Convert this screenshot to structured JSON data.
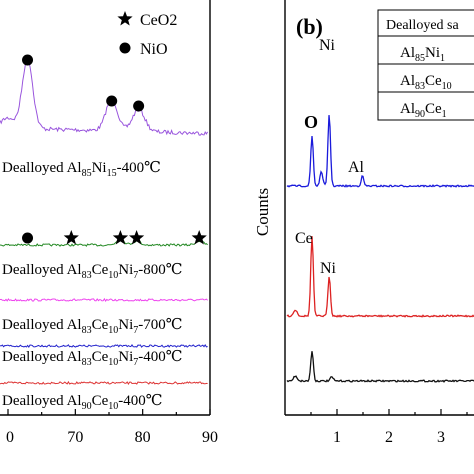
{
  "chart_data": [
    {
      "panel": "a",
      "type": "line",
      "xlim": [
        60,
        90
      ],
      "xticks": [
        "0",
        "70",
        "80",
        "90"
      ],
      "legend": [
        {
          "label": "CeO2",
          "marker": "star"
        },
        {
          "label": "NiO",
          "marker": "circle"
        }
      ],
      "series": [
        {
          "name": "Dealloyed Al85Ni15-400℃",
          "label_base": "Dealloyed Al",
          "label_parts": [
            "85",
            "Ni",
            "15",
            "-400℃"
          ],
          "color": "#9955dd",
          "peaks": [
            {
              "x": 62.9,
              "kind": "NiO"
            },
            {
              "x": 75.4,
              "kind": "NiO"
            },
            {
              "x": 79.4,
              "kind": "NiO"
            }
          ]
        },
        {
          "name": "Dealloyed Al83Ce10Ni7-800℃",
          "label_base": "Dealloyed Al",
          "label_parts": [
            "83",
            "Ce",
            "10",
            "Ni",
            "7",
            "-800℃"
          ],
          "color": "#228822",
          "peaks": [
            {
              "x": 62.9,
              "kind": "NiO"
            },
            {
              "x": 69.4,
              "kind": "CeO2"
            },
            {
              "x": 76.7,
              "kind": "CeO2"
            },
            {
              "x": 79.1,
              "kind": "CeO2"
            },
            {
              "x": 88.4,
              "kind": "CeO2"
            }
          ]
        },
        {
          "name": "Dealloyed Al83Ce10Ni7-700℃",
          "label_base": "Dealloyed Al",
          "label_parts": [
            "83",
            "Ce",
            "10",
            "Ni",
            "7",
            "-700℃"
          ],
          "color": "#ee44ee",
          "peaks": []
        },
        {
          "name": "Dealloyed Al83Ce10Ni7-400℃",
          "label_base": "Dealloyed Al",
          "label_parts": [
            "83",
            "Ce",
            "10",
            "Ni",
            "7",
            "-400℃"
          ],
          "color": "#2222cc",
          "peaks": []
        },
        {
          "name": "Dealloyed Al90Ce10-400℃",
          "label_base": "Dealloyed Al",
          "label_parts": [
            "90",
            "Ce",
            "10",
            "-400℃"
          ],
          "color": "#dd3333",
          "peaks": []
        }
      ]
    },
    {
      "panel": "b",
      "type": "line",
      "panel_label": "(b)",
      "ylabel": "Counts",
      "xlim": [
        0,
        4
      ],
      "xticks": [
        "1",
        "2",
        "3"
      ],
      "table_header": "Dealloyed sa",
      "table_rows": [
        [
          "85",
          "Ni",
          "1"
        ],
        [
          "83",
          "Ce",
          "10"
        ],
        [
          "90",
          "Ce",
          "1"
        ]
      ],
      "table_base": "Al",
      "series": [
        {
          "color": "#1a1adb",
          "labels": [
            "O",
            "Ni",
            "Al"
          ],
          "peaks_keV": [
            0.52,
            0.85,
            1.49
          ]
        },
        {
          "color": "#dd2222",
          "labels": [
            "Ce",
            "Ni"
          ],
          "peaks_keV": [
            0.52,
            0.85
          ]
        },
        {
          "color": "#111111",
          "labels": [],
          "peaks_keV": [
            0.52
          ]
        }
      ]
    }
  ]
}
